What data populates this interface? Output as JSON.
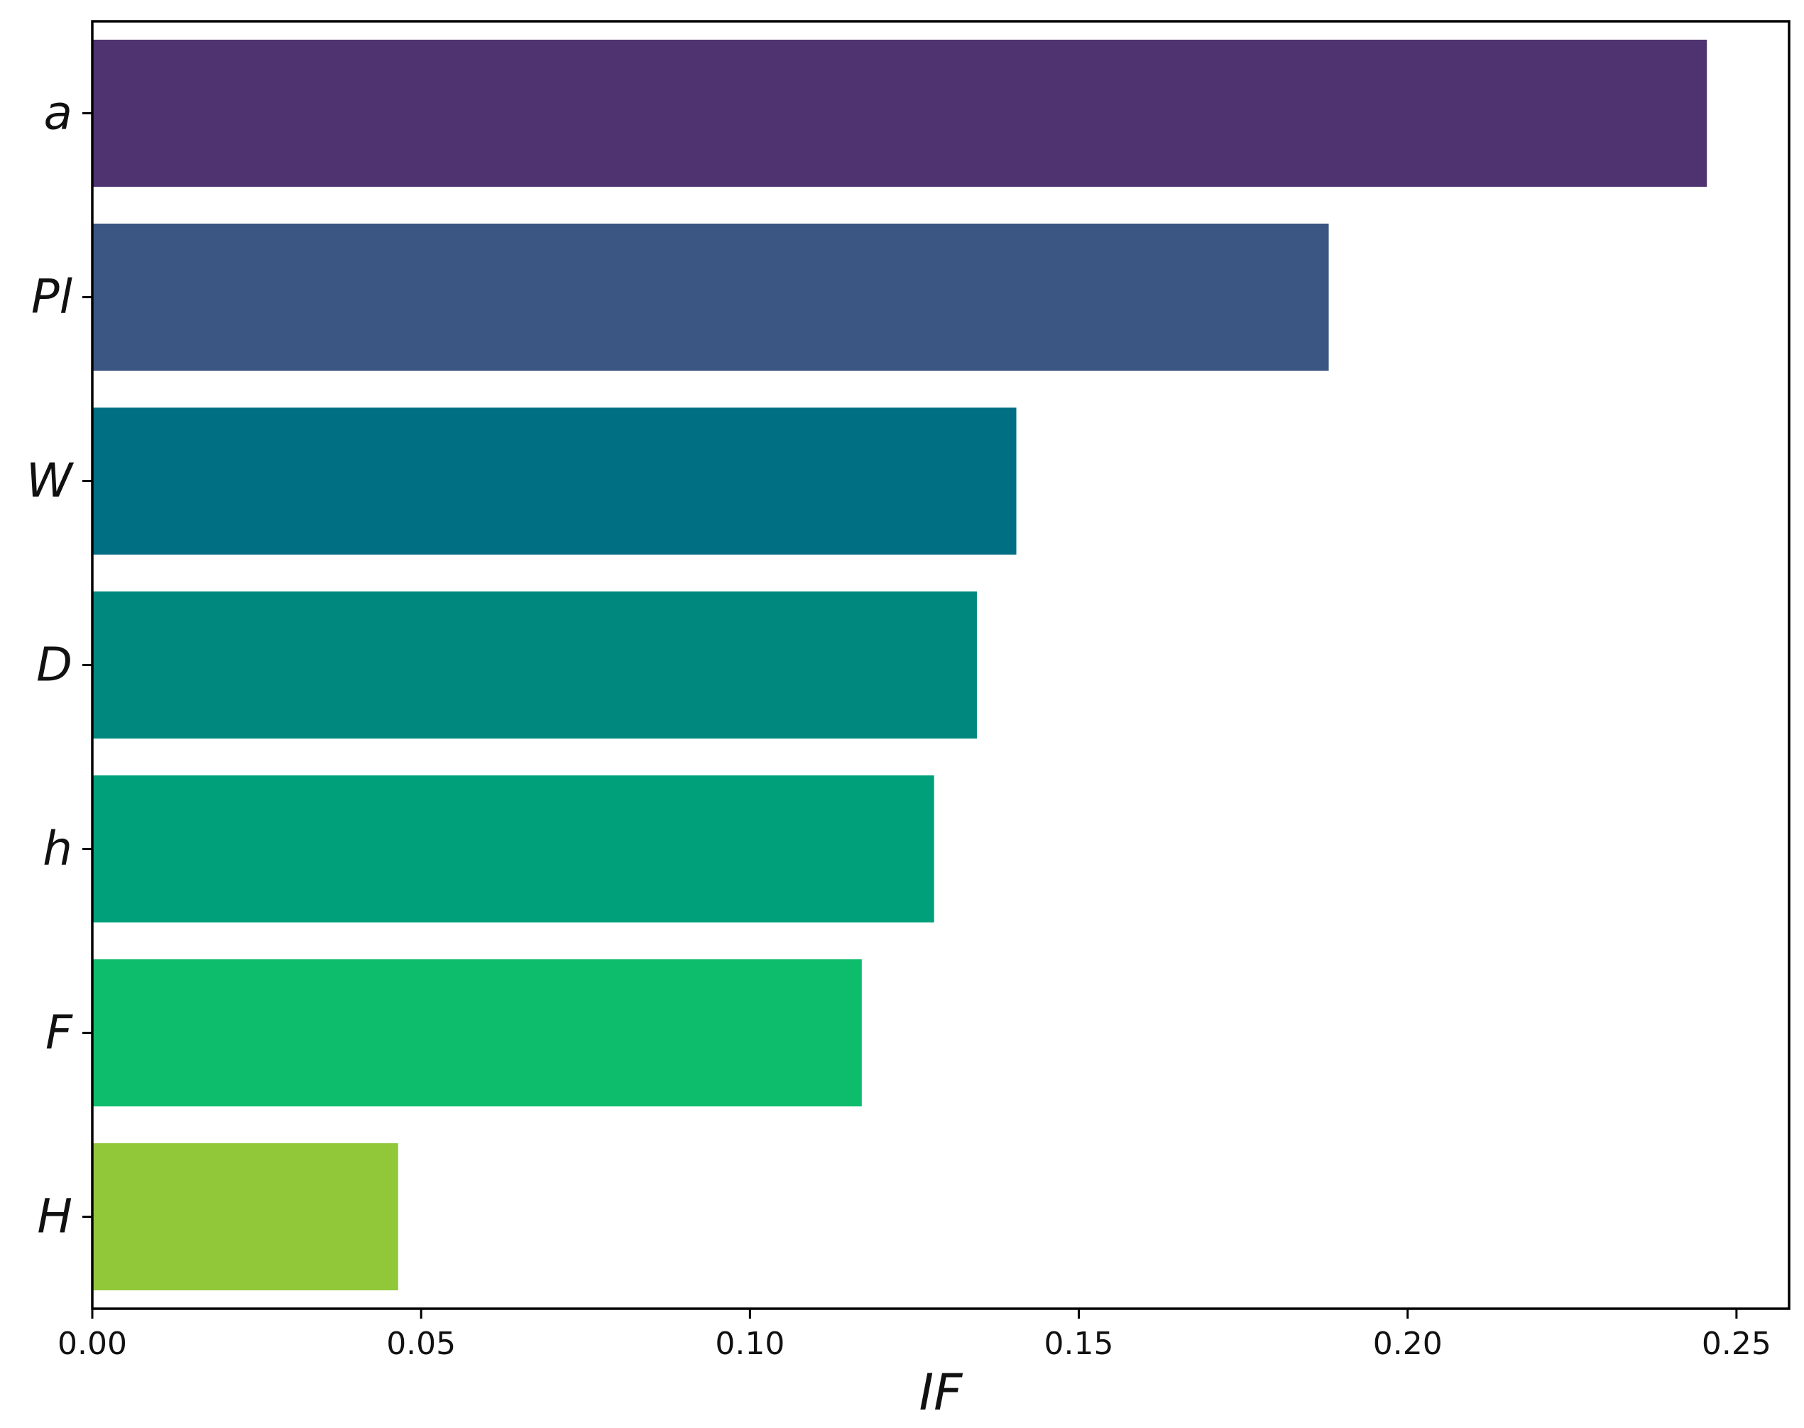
{
  "chart_data": {
    "type": "bar",
    "orientation": "horizontal",
    "categories": [
      "a",
      "Pl",
      "W",
      "D",
      "h",
      "F",
      "H"
    ],
    "values": [
      0.2455,
      0.188,
      0.1405,
      0.1345,
      0.128,
      0.117,
      0.0465
    ],
    "colors": [
      "#4f3371",
      "#3b5683",
      "#006e83",
      "#00877e",
      "#00a07b",
      "#0dbd6c",
      "#90c83a"
    ],
    "title": "",
    "xlabel": "IF",
    "ylabel": "",
    "xlim": [
      0,
      0.258
    ],
    "xticks": [
      "0.00",
      "0.05",
      "0.10",
      "0.15",
      "0.20",
      "0.25"
    ],
    "xtick_values": [
      0,
      0.05,
      0.1,
      0.15,
      0.2,
      0.25
    ],
    "grid": false,
    "legend": "none"
  }
}
